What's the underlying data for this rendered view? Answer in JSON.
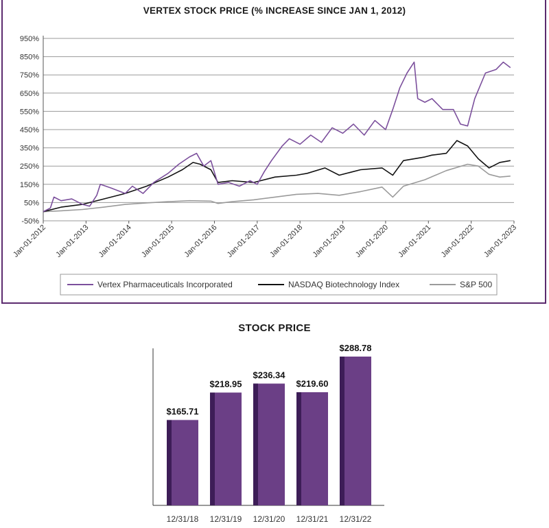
{
  "chart_data": [
    {
      "type": "line",
      "title": "VERTEX STOCK PRICE (% INCREASE SINCE JAN 1, 2012)",
      "xlabel": "",
      "ylabel": "",
      "ylim": [
        -50,
        950
      ],
      "yticks": [
        "-50%",
        "50%",
        "150%",
        "250%",
        "350%",
        "450%",
        "550%",
        "650%",
        "750%",
        "850%",
        "950%"
      ],
      "x_ticks": [
        "Jan-01-2012",
        "Jan-01-2013",
        "Jan-01-2014",
        "Jan-01-2015",
        "Jan-01-2016",
        "Jan-01-2017",
        "Jan-01-2018",
        "Jan-01-2019",
        "Jan-01-2020",
        "Jan-01-2021",
        "Jan-01-2022",
        "Jan-01-2023"
      ],
      "grid": "horizontal",
      "legend_position": "bottom",
      "series": [
        {
          "name": "Vertex Pharmaceuticals Incorporated",
          "color": "#7b4f9c",
          "x": [
            "2012-01",
            "2012-03",
            "2012-04",
            "2012-06",
            "2012-09",
            "2012-12",
            "2013-02",
            "2013-04",
            "2013-05",
            "2013-08",
            "2013-12",
            "2014-02",
            "2014-05",
            "2014-08",
            "2014-12",
            "2015-03",
            "2015-06",
            "2015-08",
            "2015-10",
            "2015-12",
            "2016-02",
            "2016-05",
            "2016-08",
            "2016-11",
            "2017-01",
            "2017-03",
            "2017-05",
            "2017-08",
            "2017-10",
            "2018-01",
            "2018-04",
            "2018-07",
            "2018-10",
            "2019-01",
            "2019-04",
            "2019-07",
            "2019-10",
            "2020-01",
            "2020-03",
            "2020-05",
            "2020-07",
            "2020-09",
            "2020-10",
            "2020-12",
            "2021-02",
            "2021-05",
            "2021-08",
            "2021-10",
            "2021-12",
            "2022-02",
            "2022-05",
            "2022-08",
            "2022-10",
            "2022-12"
          ],
          "values": [
            0,
            20,
            80,
            60,
            70,
            40,
            30,
            90,
            150,
            130,
            100,
            140,
            100,
            160,
            210,
            260,
            300,
            320,
            250,
            280,
            150,
            160,
            140,
            170,
            150,
            220,
            280,
            360,
            400,
            370,
            420,
            380,
            460,
            430,
            480,
            420,
            500,
            450,
            560,
            680,
            760,
            820,
            620,
            600,
            620,
            560,
            560,
            480,
            470,
            620,
            760,
            780,
            820,
            790
          ]
        },
        {
          "name": "NASDAQ Biotechnology Index",
          "color": "#111111",
          "x": [
            "2012-01",
            "2012-06",
            "2012-12",
            "2013-06",
            "2013-12",
            "2014-06",
            "2014-12",
            "2015-04",
            "2015-07",
            "2015-09",
            "2015-12",
            "2016-02",
            "2016-06",
            "2016-12",
            "2017-06",
            "2017-12",
            "2018-03",
            "2018-08",
            "2018-12",
            "2019-06",
            "2019-12",
            "2020-03",
            "2020-06",
            "2020-12",
            "2021-02",
            "2021-06",
            "2021-09",
            "2021-12",
            "2022-03",
            "2022-06",
            "2022-09",
            "2022-12"
          ],
          "values": [
            0,
            25,
            40,
            70,
            100,
            140,
            190,
            230,
            270,
            260,
            230,
            160,
            170,
            160,
            190,
            200,
            210,
            240,
            200,
            230,
            240,
            200,
            280,
            300,
            310,
            320,
            390,
            360,
            290,
            240,
            270,
            280
          ]
        },
        {
          "name": "S&P 500",
          "color": "#9a9a9a",
          "x": [
            "2012-01",
            "2012-06",
            "2012-12",
            "2013-06",
            "2013-12",
            "2014-06",
            "2014-12",
            "2015-06",
            "2015-12",
            "2016-02",
            "2016-06",
            "2016-12",
            "2017-06",
            "2017-12",
            "2018-06",
            "2018-12",
            "2019-06",
            "2019-12",
            "2020-03",
            "2020-06",
            "2020-12",
            "2021-06",
            "2021-12",
            "2022-03",
            "2022-06",
            "2022-09",
            "2022-12"
          ],
          "values": [
            0,
            5,
            12,
            25,
            40,
            48,
            55,
            60,
            58,
            45,
            55,
            65,
            80,
            95,
            100,
            90,
            110,
            135,
            80,
            140,
            175,
            225,
            260,
            250,
            205,
            190,
            195
          ]
        }
      ]
    },
    {
      "type": "bar",
      "title": "STOCK PRICE",
      "categories": [
        "12/31/18",
        "12/31/19",
        "12/31/20",
        "12/31/21",
        "12/31/22"
      ],
      "values": [
        165.71,
        218.95,
        236.34,
        219.6,
        288.78
      ],
      "labels": [
        "$165.71",
        "$218.95",
        "$236.34",
        "$219.60",
        "$288.78"
      ],
      "ylim": [
        0,
        320
      ],
      "color": "#6b3f86",
      "accent_color": "#3d1d57"
    }
  ]
}
